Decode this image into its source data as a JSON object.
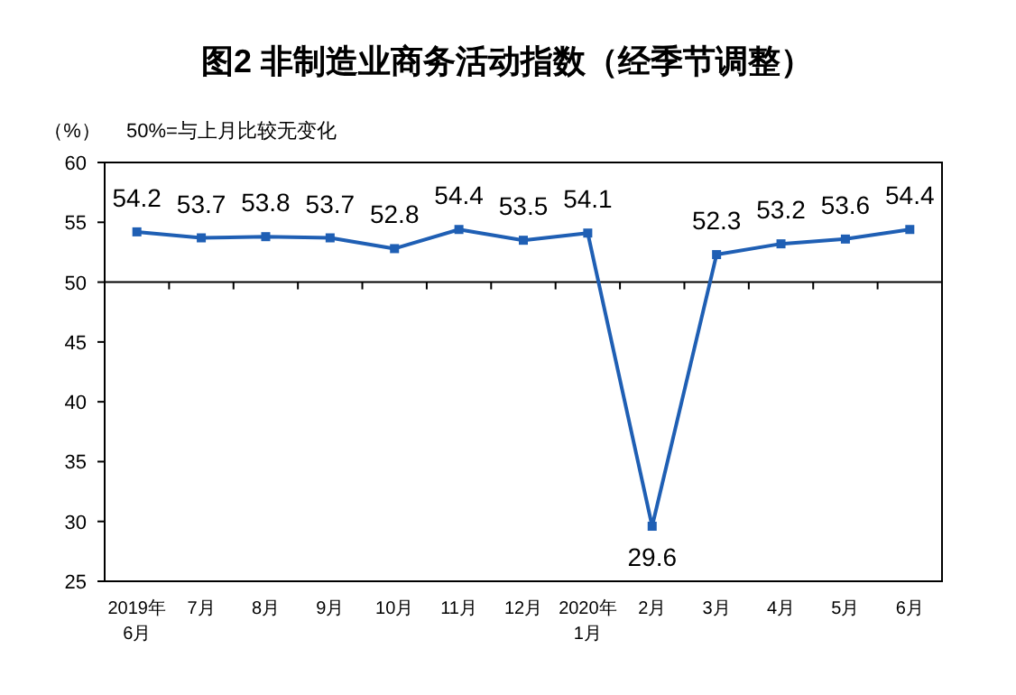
{
  "chart_data": {
    "type": "line",
    "title": "图2  非制造业商务活动指数（经季节调整）",
    "ylabel": "（%）",
    "annotations": [
      "50%=与上月比较无变化"
    ],
    "categories": [
      "2019年\n6月",
      "7月",
      "8月",
      "9月",
      "10月",
      "11月",
      "12月",
      "2020年\n1月",
      "2月",
      "3月",
      "4月",
      "5月",
      "6月"
    ],
    "values": [
      54.2,
      53.7,
      53.8,
      53.7,
      52.8,
      54.4,
      53.5,
      54.1,
      29.6,
      52.3,
      53.2,
      53.6,
      54.4
    ],
    "color": "#1f5fb4",
    "marker": "square",
    "data_labels": true,
    "grid": false,
    "ylim": [
      25,
      60
    ],
    "yticks": [
      25,
      30,
      35,
      40,
      45,
      50,
      55,
      60
    ],
    "ref_lines": [
      {
        "axis": "y",
        "value": 50,
        "label": null
      }
    ]
  }
}
